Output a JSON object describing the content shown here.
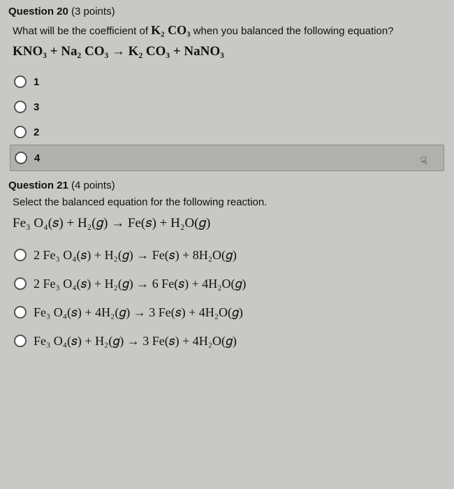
{
  "q20": {
    "number": "Question 20",
    "points": "(3 points)",
    "prompt_pre": "What will be the coefficient of ",
    "prompt_formula": "K₂ CO₃",
    "prompt_post": " when you balanced the following equation?",
    "equation": "KNO₃  +  Na₂ CO₃  →  K₂ CO₃  +  NaNO₃",
    "options": [
      "1",
      "3",
      "2",
      "4"
    ],
    "selected_index": 3
  },
  "q21": {
    "number": "Question 21",
    "points": "(4 points)",
    "prompt": "Select the balanced equation for the following reaction.",
    "equation": "Fe₃ O₄(𝑠)  +  H₂(𝑔)   →    Fe(𝑠)  +  H₂O(𝑔)",
    "options": [
      "2 Fe₃ O₄(𝑠)  +  H₂(𝑔)   →    Fe(𝑠)  +  8H₂O(𝑔)",
      "2 Fe₃ O₄(𝑠)  +  H₂(𝑔)   →   6 Fe(𝑠)  +  4H₂O(𝑔)",
      "Fe₃ O₄(𝑠)  +  4H₂(𝑔)   →   3 Fe(𝑠)  +  4H₂O(𝑔)",
      "Fe₃ O₄(𝑠)  +  H₂(𝑔)   →   3 Fe(𝑠)  +  4H₂O(𝑔)"
    ],
    "selected_index": -1
  },
  "cursor_glyph": "☟"
}
